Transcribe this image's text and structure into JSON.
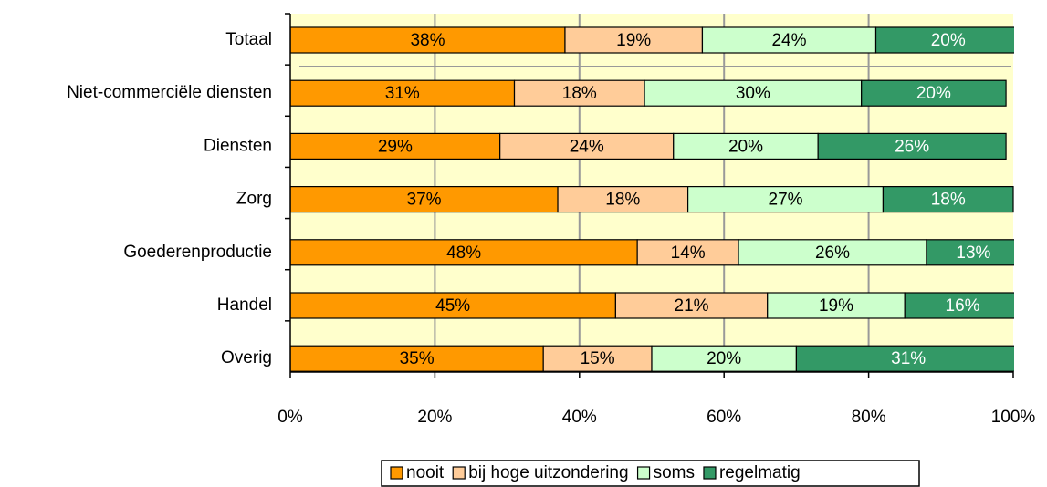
{
  "chart_data": {
    "type": "stacked-bar-horizontal",
    "categories": [
      "Totaal",
      "Niet-commerciële diensten",
      "Diensten",
      "Zorg",
      "Goederenproductie",
      "Handel",
      "Overig"
    ],
    "series": [
      {
        "name": "nooit",
        "color": "#ff9900",
        "values": [
          38,
          31,
          29,
          37,
          48,
          45,
          35
        ],
        "value_labels": [
          "38%",
          "31%",
          "29%",
          "37%",
          "48%",
          "45%",
          "35%"
        ]
      },
      {
        "name": "bij hoge uitzondering",
        "color": "#ffcc99",
        "values": [
          19,
          18,
          24,
          18,
          14,
          21,
          15
        ],
        "value_labels": [
          "19%",
          "18%",
          "24%",
          "18%",
          "14%",
          "21%",
          "15%"
        ]
      },
      {
        "name": "soms",
        "color": "#ccffcc",
        "values": [
          24,
          30,
          20,
          27,
          26,
          19,
          20
        ],
        "value_labels": [
          "24%",
          "30%",
          "20%",
          "27%",
          "26%",
          "19%",
          "20%"
        ]
      },
      {
        "name": "regelmatig",
        "color": "#339966",
        "values": [
          20,
          20,
          26,
          18,
          13,
          16,
          31
        ],
        "value_labels": [
          "20%",
          "20%",
          "26%",
          "18%",
          "13%",
          "16%",
          "31%"
        ]
      }
    ],
    "xlim": [
      0,
      100
    ],
    "xticks": [
      {
        "value": 0,
        "label": "0%"
      },
      {
        "value": 20,
        "label": "20%"
      },
      {
        "value": 40,
        "label": "40%"
      },
      {
        "value": 60,
        "label": "60%"
      },
      {
        "value": 80,
        "label": "80%"
      },
      {
        "value": 100,
        "label": "100%"
      }
    ],
    "grid": true,
    "legend": "bottom"
  }
}
